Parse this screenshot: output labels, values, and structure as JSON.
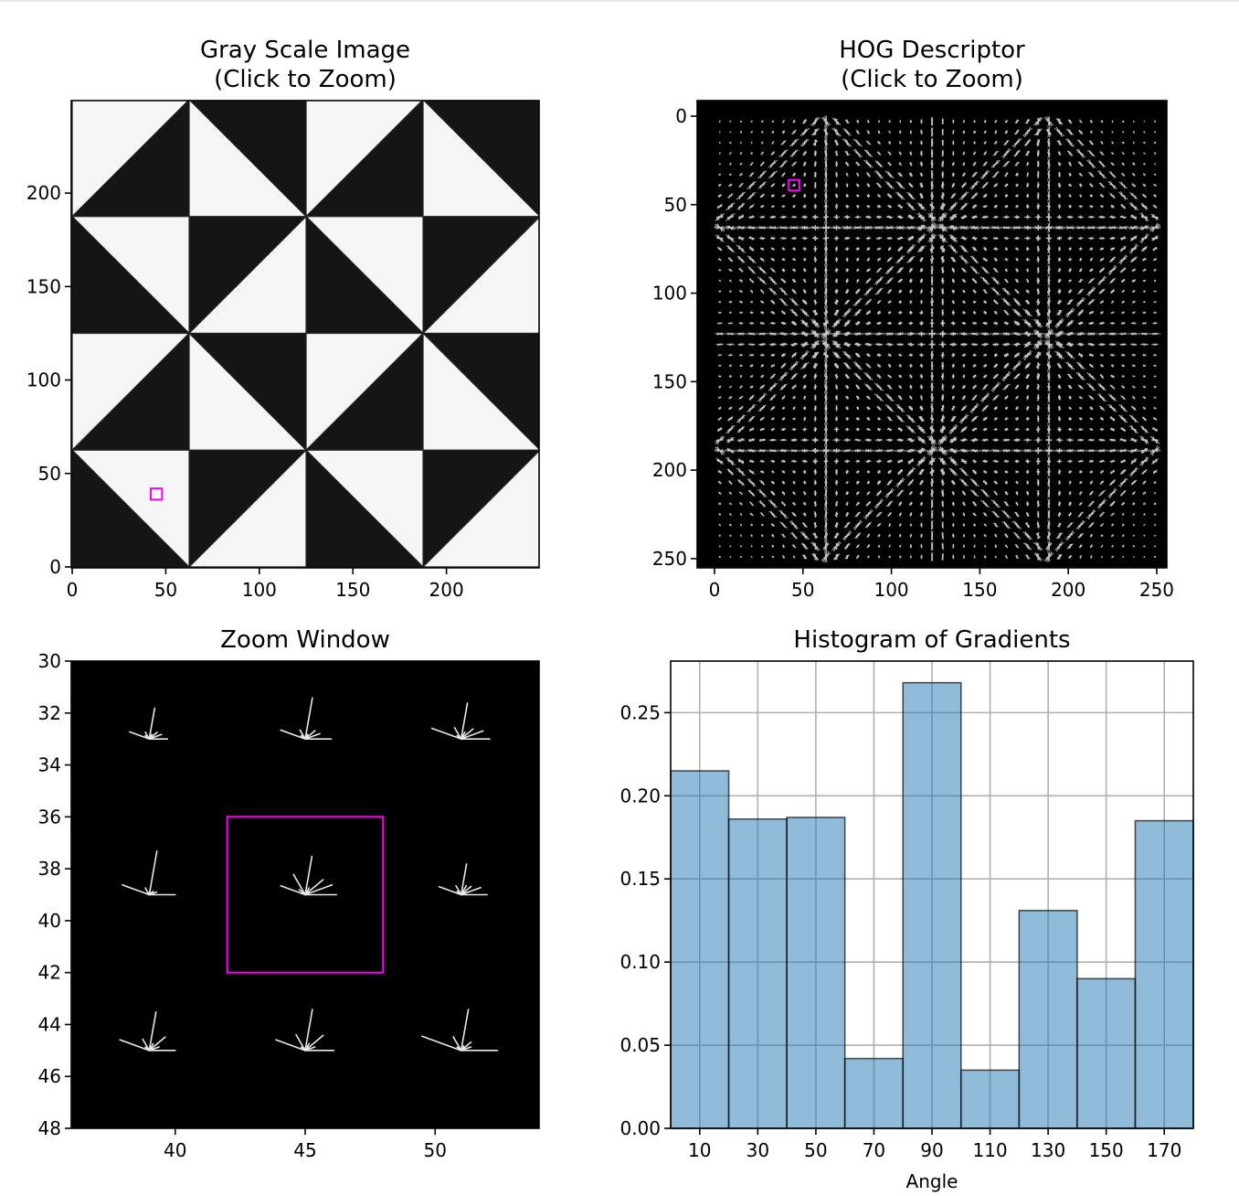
{
  "figure": {
    "background": "#ffffff",
    "selection_color": "#ff00ff"
  },
  "gray_panel": {
    "title_line1": "Gray Scale Image",
    "title_line2": "(Click to Zoom)",
    "xticks": [
      0,
      50,
      100,
      150,
      200
    ],
    "yticks": [
      0,
      50,
      100,
      150,
      200
    ],
    "xlim": [
      -0.5,
      249.5
    ],
    "ylim": [
      249.5,
      -0.5
    ],
    "tile_size": 62.5,
    "tile_pattern": [
      [
        "A",
        "B",
        "A",
        "B"
      ],
      [
        "C",
        "D",
        "C",
        "D"
      ],
      [
        "A",
        "B",
        "A",
        "B"
      ],
      [
        "C",
        "D",
        "C",
        "D"
      ]
    ],
    "selection": {
      "x": [
        42,
        48
      ],
      "y": [
        36,
        42
      ]
    }
  },
  "hog_panel": {
    "title_line1": "HOG Descriptor",
    "title_line2": "(Click to Zoom)",
    "xticks": [
      0,
      50,
      100,
      150,
      200,
      250
    ],
    "yticks": [
      0,
      50,
      100,
      150,
      200,
      250
    ],
    "cell_spacing": 6,
    "orientation_bins_deg": [
      0,
      20,
      40,
      60,
      80,
      100,
      120,
      140,
      160
    ],
    "selection": {
      "x": [
        42,
        48
      ],
      "y": [
        36,
        42
      ]
    }
  },
  "zoom_panel": {
    "title": "Zoom Window",
    "xlim": [
      36,
      54
    ],
    "ylim": [
      48,
      30
    ],
    "xticks": [
      40,
      45,
      50
    ],
    "yticks": [
      30,
      32,
      34,
      36,
      38,
      40,
      42,
      44,
      46,
      48
    ],
    "orientation_bins_deg": [
      0,
      20,
      40,
      60,
      80,
      100,
      120,
      140,
      160
    ],
    "cells": [
      {
        "x": 39,
        "y": 33,
        "mags": [
          0.7,
          0.5,
          0.4,
          0.2,
          1.2,
          0.0,
          0.3,
          0.2,
          0.8
        ]
      },
      {
        "x": 45,
        "y": 33,
        "mags": [
          1.0,
          0.6,
          0.5,
          0.2,
          1.6,
          0.0,
          0.4,
          0.2,
          1.0
        ]
      },
      {
        "x": 51,
        "y": 33,
        "mags": [
          1.1,
          0.9,
          0.6,
          0.3,
          1.4,
          0.0,
          0.5,
          0.2,
          1.2
        ]
      },
      {
        "x": 39,
        "y": 39,
        "mags": [
          1.0,
          0.3,
          0.2,
          0.1,
          1.7,
          0.0,
          0.3,
          0.1,
          1.1
        ]
      },
      {
        "x": 45,
        "y": 39,
        "mags": [
          1.2,
          1.1,
          0.9,
          0.3,
          1.5,
          0.0,
          0.9,
          0.3,
          1.0
        ]
      },
      {
        "x": 51,
        "y": 39,
        "mags": [
          1.0,
          0.8,
          0.5,
          0.4,
          1.2,
          0.0,
          0.4,
          0.2,
          0.9
        ]
      },
      {
        "x": 39,
        "y": 45,
        "mags": [
          1.0,
          0.4,
          0.8,
          0.3,
          1.5,
          0.0,
          0.5,
          0.2,
          1.2
        ]
      },
      {
        "x": 45,
        "y": 45,
        "mags": [
          1.1,
          0.4,
          0.9,
          0.3,
          1.6,
          0.0,
          0.7,
          0.2,
          1.2
        ]
      },
      {
        "x": 51,
        "y": 45,
        "mags": [
          1.4,
          0.4,
          0.5,
          0.2,
          1.6,
          0.0,
          0.6,
          0.2,
          1.6
        ]
      }
    ],
    "selection": {
      "x": [
        42,
        48
      ],
      "y": [
        36,
        42
      ]
    }
  },
  "chart_data": {
    "type": "bar",
    "title": "Histogram of Gradients",
    "xlabel": "Angle",
    "ylabel": "",
    "categories": [
      "10",
      "30",
      "50",
      "70",
      "90",
      "110",
      "130",
      "150",
      "170"
    ],
    "bin_edges": [
      0,
      20,
      40,
      60,
      80,
      100,
      120,
      140,
      160,
      180
    ],
    "values": [
      0.215,
      0.186,
      0.187,
      0.042,
      0.268,
      0.035,
      0.131,
      0.09,
      0.185
    ],
    "xticks": [
      10,
      30,
      50,
      70,
      90,
      110,
      130,
      150,
      170
    ],
    "yticks": [
      "0.00",
      "0.05",
      "0.10",
      "0.15",
      "0.20",
      "0.25"
    ],
    "xlim": [
      0,
      180
    ],
    "ylim": [
      0,
      0.281
    ],
    "grid": true,
    "bar_color": "#1f77b4",
    "bar_alpha": 0.5,
    "edge_color": "#000000"
  }
}
